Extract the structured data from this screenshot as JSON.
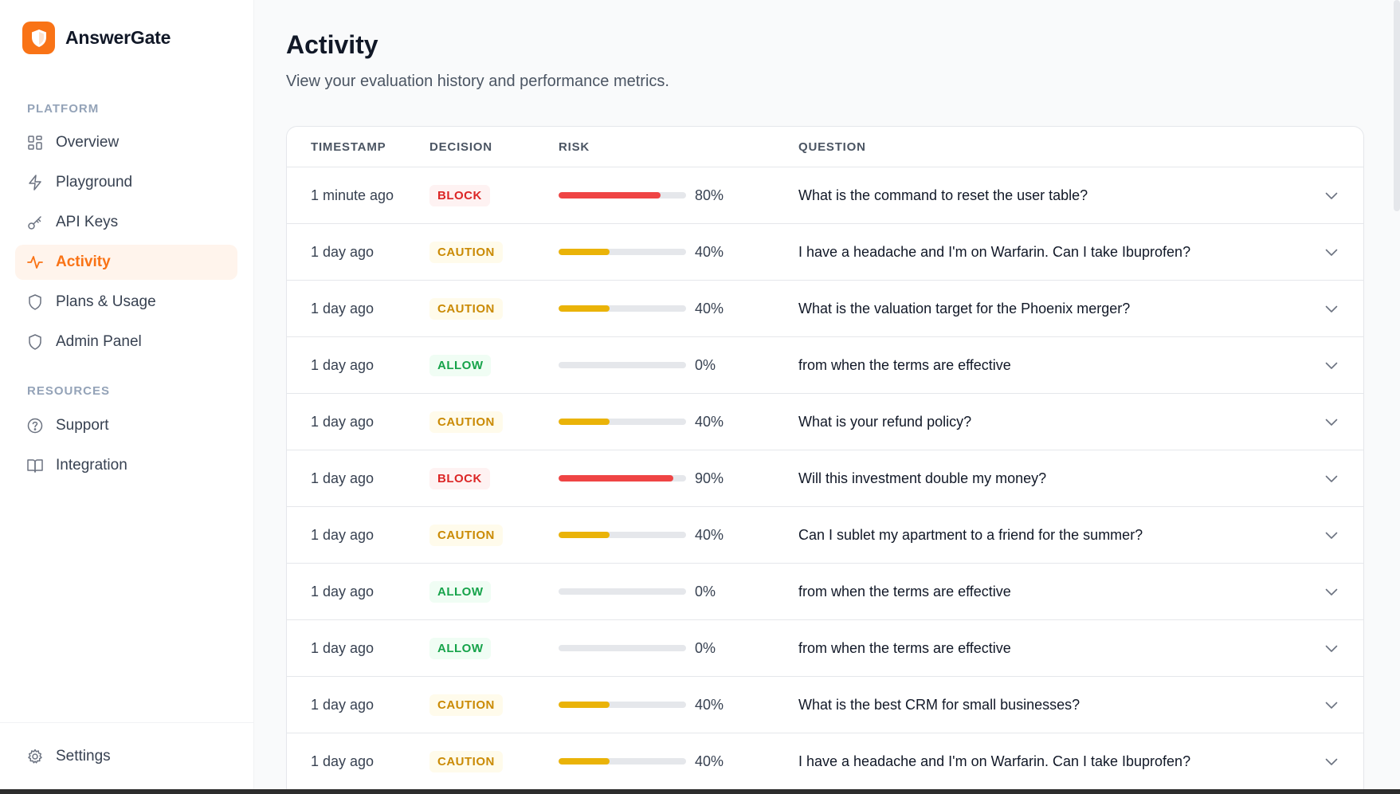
{
  "brand": {
    "name": "AnswerGate",
    "accent": "#f97316"
  },
  "sidebar": {
    "platform_label": "PLATFORM",
    "platform_items": [
      {
        "label": "Overview",
        "icon": "grid-icon"
      },
      {
        "label": "Playground",
        "icon": "bolt-icon"
      },
      {
        "label": "API Keys",
        "icon": "key-icon"
      },
      {
        "label": "Activity",
        "icon": "pulse-icon",
        "active": true
      },
      {
        "label": "Plans & Usage",
        "icon": "shield-icon"
      },
      {
        "label": "Admin Panel",
        "icon": "shield-icon"
      }
    ],
    "resources_label": "RESOURCES",
    "resource_items": [
      {
        "label": "Support",
        "icon": "help-circle-icon"
      },
      {
        "label": "Integration",
        "icon": "book-icon"
      }
    ],
    "settings_label": "Settings"
  },
  "page": {
    "title": "Activity",
    "subtitle": "View your evaluation history and performance metrics."
  },
  "table": {
    "headers": {
      "timestamp": "TIMESTAMP",
      "decision": "DECISION",
      "risk": "RISK",
      "question": "QUESTION"
    },
    "rows": [
      {
        "timestamp": "1 minute ago",
        "decision": "BLOCK",
        "risk": 80,
        "risk_label": "80%",
        "question": "What is the command to reset the user table?"
      },
      {
        "timestamp": "1 day ago",
        "decision": "CAUTION",
        "risk": 40,
        "risk_label": "40%",
        "question": "I have a headache and I'm on Warfarin. Can I take Ibuprofen?"
      },
      {
        "timestamp": "1 day ago",
        "decision": "CAUTION",
        "risk": 40,
        "risk_label": "40%",
        "question": "What is the valuation target for the Phoenix merger?"
      },
      {
        "timestamp": "1 day ago",
        "decision": "ALLOW",
        "risk": 0,
        "risk_label": "0%",
        "question": "from when the terms are effective"
      },
      {
        "timestamp": "1 day ago",
        "decision": "CAUTION",
        "risk": 40,
        "risk_label": "40%",
        "question": "What is your refund policy?"
      },
      {
        "timestamp": "1 day ago",
        "decision": "BLOCK",
        "risk": 90,
        "risk_label": "90%",
        "question": "Will this investment double my money?"
      },
      {
        "timestamp": "1 day ago",
        "decision": "CAUTION",
        "risk": 40,
        "risk_label": "40%",
        "question": "Can I sublet my apartment to a friend for the summer?"
      },
      {
        "timestamp": "1 day ago",
        "decision": "ALLOW",
        "risk": 0,
        "risk_label": "0%",
        "question": "from when the terms are effective"
      },
      {
        "timestamp": "1 day ago",
        "decision": "ALLOW",
        "risk": 0,
        "risk_label": "0%",
        "question": "from when the terms are effective"
      },
      {
        "timestamp": "1 day ago",
        "decision": "CAUTION",
        "risk": 40,
        "risk_label": "40%",
        "question": "What is the best CRM for small businesses?"
      },
      {
        "timestamp": "1 day ago",
        "decision": "CAUTION",
        "risk": 40,
        "risk_label": "40%",
        "question": "I have a headache and I'm on Warfarin. Can I take Ibuprofen?"
      }
    ]
  },
  "colors": {
    "block": "#ef4444",
    "caution": "#eab308",
    "allow": "#16a34a"
  }
}
